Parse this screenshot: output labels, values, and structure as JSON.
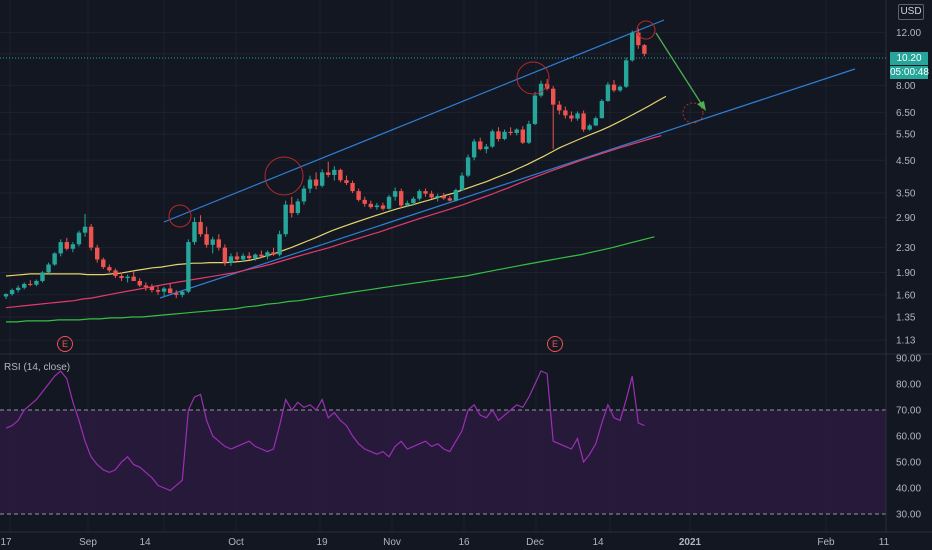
{
  "chart_data": {
    "type": "candlestick",
    "currency": "USD",
    "last_price": "10.20",
    "countdown": "05:00:48",
    "price_ticks": [
      "12.00",
      "10.20",
      "8.00",
      "6.50",
      "5.50",
      "4.50",
      "3.50",
      "2.90",
      "2.30",
      "1.90",
      "1.60",
      "1.35",
      "1.13"
    ],
    "rsi_ticks": [
      "90.00",
      "80.00",
      "70.00",
      "60.00",
      "50.00",
      "40.00",
      "30.00"
    ],
    "time_ticks": [
      "17",
      "Sep",
      "14",
      "Oct",
      "19",
      "Nov",
      "16",
      "Dec",
      "14",
      "2021",
      "Feb",
      "11"
    ],
    "rsi_label": "RSI (14, close)",
    "earnings_marker": "E",
    "rsi_overbought": 70,
    "rsi_oversold": 30,
    "colors": {
      "background": "#131722",
      "up": "#26a69a",
      "down": "#ef5350",
      "channel": "#2e7fd4",
      "ma_short": "#e6d46a",
      "ma_mid": "#e23a6b",
      "ma_long": "#35c043",
      "rsi_line": "#9c2fb5",
      "rsi_band": "#2a1a3e",
      "arrow": "#4caf50"
    },
    "candles": [
      [
        1.58,
        1.62,
        1.55,
        1.61
      ],
      [
        1.61,
        1.68,
        1.59,
        1.66
      ],
      [
        1.66,
        1.72,
        1.63,
        1.69
      ],
      [
        1.69,
        1.76,
        1.67,
        1.74
      ],
      [
        1.74,
        1.79,
        1.71,
        1.73
      ],
      [
        1.73,
        1.8,
        1.71,
        1.78
      ],
      [
        1.78,
        1.92,
        1.76,
        1.9
      ],
      [
        1.9,
        2.05,
        1.88,
        2.02
      ],
      [
        2.02,
        2.22,
        2.0,
        2.2
      ],
      [
        2.2,
        2.45,
        2.15,
        2.4
      ],
      [
        2.4,
        2.48,
        2.25,
        2.28
      ],
      [
        2.28,
        2.4,
        2.22,
        2.36
      ],
      [
        2.36,
        2.62,
        2.32,
        2.58
      ],
      [
        2.58,
        2.98,
        2.5,
        2.7
      ],
      [
        2.7,
        2.76,
        2.25,
        2.3
      ],
      [
        2.3,
        2.35,
        2.05,
        2.1
      ],
      [
        2.1,
        2.13,
        1.95,
        1.98
      ],
      [
        1.98,
        2.02,
        1.9,
        1.93
      ],
      [
        1.93,
        1.96,
        1.82,
        1.85
      ],
      [
        1.85,
        1.9,
        1.78,
        1.82
      ],
      [
        1.82,
        1.87,
        1.76,
        1.84
      ],
      [
        1.84,
        1.92,
        1.8,
        1.78
      ],
      [
        1.78,
        1.82,
        1.7,
        1.72
      ],
      [
        1.72,
        1.76,
        1.65,
        1.7
      ],
      [
        1.7,
        1.74,
        1.63,
        1.66
      ],
      [
        1.66,
        1.72,
        1.6,
        1.64
      ],
      [
        1.64,
        1.7,
        1.58,
        1.68
      ],
      [
        1.68,
        1.74,
        1.64,
        1.62
      ],
      [
        1.62,
        1.66,
        1.56,
        1.6
      ],
      [
        1.6,
        1.66,
        1.57,
        1.64
      ],
      [
        1.64,
        2.45,
        1.62,
        2.4
      ],
      [
        2.4,
        2.9,
        2.35,
        2.8
      ],
      [
        2.8,
        2.95,
        2.5,
        2.55
      ],
      [
        2.55,
        2.7,
        2.3,
        2.35
      ],
      [
        2.35,
        2.5,
        2.2,
        2.45
      ],
      [
        2.45,
        2.55,
        2.25,
        2.3
      ],
      [
        2.3,
        2.36,
        2.0,
        2.05
      ],
      [
        2.05,
        2.2,
        2.0,
        2.15
      ],
      [
        2.15,
        2.22,
        2.08,
        2.1
      ],
      [
        2.1,
        2.2,
        2.06,
        2.16
      ],
      [
        2.16,
        2.22,
        2.1,
        2.12
      ],
      [
        2.12,
        2.2,
        2.08,
        2.18
      ],
      [
        2.18,
        2.25,
        2.12,
        2.15
      ],
      [
        2.15,
        2.25,
        2.1,
        2.22
      ],
      [
        2.22,
        2.3,
        2.16,
        2.18
      ],
      [
        2.18,
        2.62,
        2.15,
        2.55
      ],
      [
        2.55,
        3.3,
        2.5,
        3.2
      ],
      [
        3.2,
        3.4,
        2.9,
        3.0
      ],
      [
        3.0,
        3.35,
        2.95,
        3.28
      ],
      [
        3.28,
        3.7,
        3.2,
        3.62
      ],
      [
        3.62,
        4.0,
        3.5,
        3.88
      ],
      [
        3.88,
        4.1,
        3.6,
        3.7
      ],
      [
        3.7,
        4.2,
        3.65,
        4.1
      ],
      [
        4.1,
        4.45,
        3.95,
        4.02
      ],
      [
        4.02,
        4.3,
        3.85,
        4.18
      ],
      [
        4.18,
        4.22,
        3.8,
        3.86
      ],
      [
        3.86,
        4.0,
        3.72,
        3.78
      ],
      [
        3.78,
        3.85,
        3.5,
        3.55
      ],
      [
        3.55,
        3.62,
        3.28,
        3.32
      ],
      [
        3.32,
        3.4,
        3.15,
        3.22
      ],
      [
        3.22,
        3.3,
        3.1,
        3.14
      ],
      [
        3.14,
        3.24,
        3.08,
        3.18
      ],
      [
        3.18,
        3.25,
        3.06,
        3.1
      ],
      [
        3.1,
        3.45,
        3.08,
        3.4
      ],
      [
        3.4,
        3.65,
        3.3,
        3.55
      ],
      [
        3.55,
        3.62,
        3.12,
        3.18
      ],
      [
        3.18,
        3.3,
        3.14,
        3.24
      ],
      [
        3.24,
        3.4,
        3.18,
        3.35
      ],
      [
        3.35,
        3.6,
        3.3,
        3.55
      ],
      [
        3.55,
        3.62,
        3.4,
        3.48
      ],
      [
        3.48,
        3.56,
        3.34,
        3.38
      ],
      [
        3.38,
        3.48,
        3.28,
        3.42
      ],
      [
        3.42,
        3.5,
        3.32,
        3.36
      ],
      [
        3.36,
        3.42,
        3.28,
        3.3
      ],
      [
        3.3,
        3.62,
        3.28,
        3.58
      ],
      [
        3.58,
        4.1,
        3.55,
        4.0
      ],
      [
        4.0,
        4.7,
        3.95,
        4.6
      ],
      [
        4.6,
        5.3,
        4.5,
        5.2
      ],
      [
        5.2,
        5.35,
        4.85,
        4.9
      ],
      [
        4.9,
        5.1,
        4.75,
        5.0
      ],
      [
        5.0,
        5.7,
        4.95,
        5.62
      ],
      [
        5.62,
        5.8,
        5.2,
        5.3
      ],
      [
        5.3,
        5.7,
        5.25,
        5.6
      ],
      [
        5.6,
        5.8,
        5.45,
        5.55
      ],
      [
        5.55,
        5.75,
        5.45,
        5.7
      ],
      [
        5.7,
        5.85,
        5.1,
        5.15
      ],
      [
        5.15,
        6.1,
        5.1,
        5.95
      ],
      [
        5.95,
        7.6,
        5.9,
        7.4
      ],
      [
        7.4,
        8.3,
        7.3,
        8.1
      ],
      [
        8.1,
        8.4,
        7.7,
        7.8
      ],
      [
        7.8,
        7.95,
        4.9,
        6.9
      ],
      [
        6.9,
        7.1,
        6.4,
        6.6
      ],
      [
        6.6,
        6.8,
        6.2,
        6.35
      ],
      [
        6.35,
        6.55,
        6.05,
        6.2
      ],
      [
        6.2,
        6.55,
        6.1,
        6.45
      ],
      [
        6.45,
        6.6,
        5.6,
        5.7
      ],
      [
        5.7,
        5.95,
        5.65,
        5.88
      ],
      [
        5.88,
        6.3,
        5.85,
        6.22
      ],
      [
        6.22,
        7.2,
        6.2,
        7.1
      ],
      [
        7.1,
        8.2,
        7.05,
        8.05
      ],
      [
        8.05,
        8.35,
        7.6,
        7.7
      ],
      [
        7.7,
        8.0,
        7.6,
        7.92
      ],
      [
        7.92,
        9.9,
        7.85,
        9.7
      ],
      [
        9.7,
        12.2,
        9.6,
        12.0
      ],
      [
        12.0,
        12.4,
        10.6,
        10.9
      ],
      [
        10.9,
        11.0,
        10.0,
        10.2
      ]
    ],
    "rsi_values": [
      63,
      64,
      66,
      70,
      72,
      74,
      77,
      80,
      83,
      85,
      82,
      73,
      66,
      58,
      52,
      49,
      47,
      46,
      47,
      50,
      52,
      49,
      48,
      46,
      44,
      41,
      40,
      39,
      41,
      43,
      70,
      75,
      76,
      66,
      60,
      58,
      56,
      55,
      56,
      57,
      58,
      56,
      55,
      54,
      55,
      64,
      74,
      70,
      73,
      71,
      72,
      70,
      74,
      67,
      69,
      66,
      64,
      60,
      57,
      55,
      54,
      53,
      54,
      52,
      56,
      58,
      55,
      56,
      57,
      58,
      56,
      57,
      55,
      54,
      58,
      62,
      70,
      72,
      68,
      67,
      70,
      66,
      68,
      70,
      72,
      71,
      75,
      80,
      85,
      84,
      58,
      57,
      56,
      55,
      59,
      50,
      53,
      57,
      65,
      72,
      67,
      66,
      74,
      83,
      65,
      64
    ],
    "ma_short": [
      1.85,
      1.86,
      1.87,
      1.88,
      1.88,
      1.88,
      1.88,
      1.88,
      1.88,
      1.88,
      1.87,
      1.87,
      1.87,
      1.88,
      1.89,
      1.91,
      1.93,
      1.95,
      1.97,
      1.98,
      2.0,
      2.02,
      2.03,
      2.04,
      2.04,
      2.05,
      2.05,
      2.05,
      2.06,
      2.07,
      2.09,
      2.12,
      2.16,
      2.2,
      2.25,
      2.3,
      2.36,
      2.42,
      2.48,
      2.55,
      2.62,
      2.68,
      2.74,
      2.8,
      2.86,
      2.92,
      2.98,
      3.04,
      3.1,
      3.15,
      3.2,
      3.26,
      3.32,
      3.38,
      3.44,
      3.5,
      3.58,
      3.66,
      3.74,
      3.82,
      3.92,
      4.02,
      4.12,
      4.24,
      4.36,
      4.5,
      4.64,
      4.8,
      4.96,
      5.1,
      5.24,
      5.38,
      5.52,
      5.66,
      5.82,
      6.0,
      6.2,
      6.4,
      6.62,
      6.85,
      7.1,
      7.35
    ],
    "ma_mid": [
      1.45,
      1.46,
      1.47,
      1.48,
      1.49,
      1.5,
      1.51,
      1.52,
      1.53,
      1.55,
      1.56,
      1.58,
      1.6,
      1.62,
      1.64,
      1.66,
      1.68,
      1.7,
      1.72,
      1.74,
      1.76,
      1.78,
      1.8,
      1.82,
      1.84,
      1.86,
      1.88,
      1.9,
      1.93,
      1.96,
      1.99,
      2.02,
      2.06,
      2.1,
      2.14,
      2.18,
      2.22,
      2.26,
      2.3,
      2.35,
      2.4,
      2.45,
      2.5,
      2.55,
      2.6,
      2.66,
      2.72,
      2.78,
      2.84,
      2.9,
      2.96,
      3.02,
      3.08,
      3.15,
      3.22,
      3.3,
      3.38,
      3.46,
      3.55,
      3.64,
      3.74,
      3.84,
      3.94,
      4.04,
      4.14,
      4.24,
      4.34,
      4.44,
      4.54,
      4.64,
      4.74,
      4.84,
      4.94,
      5.04,
      5.14,
      5.24,
      5.34,
      5.44
    ],
    "ma_long": [
      1.3,
      1.3,
      1.31,
      1.31,
      1.31,
      1.32,
      1.32,
      1.32,
      1.33,
      1.33,
      1.34,
      1.34,
      1.35,
      1.35,
      1.36,
      1.37,
      1.38,
      1.39,
      1.4,
      1.41,
      1.42,
      1.43,
      1.44,
      1.46,
      1.47,
      1.49,
      1.5,
      1.52,
      1.53,
      1.55,
      1.57,
      1.59,
      1.61,
      1.63,
      1.65,
      1.67,
      1.69,
      1.71,
      1.73,
      1.75,
      1.77,
      1.79,
      1.81,
      1.83,
      1.85,
      1.88,
      1.91,
      1.94,
      1.97,
      2.0,
      2.03,
      2.06,
      2.09,
      2.12,
      2.15,
      2.18,
      2.22,
      2.26,
      2.3,
      2.35,
      2.4,
      2.45,
      2.5
    ]
  }
}
